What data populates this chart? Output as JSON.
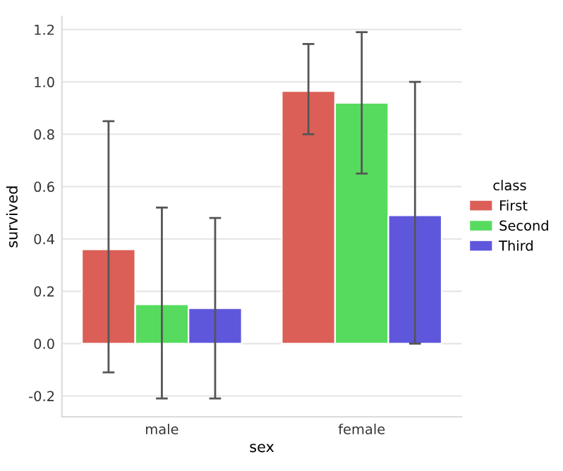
{
  "chart_data": {
    "type": "bar",
    "xlabel": "sex",
    "ylabel": "survived",
    "legend_title": "class",
    "categories": [
      "male",
      "female"
    ],
    "series": [
      {
        "name": "First",
        "color": "#db5f57",
        "values": [
          0.36,
          0.965
        ],
        "errors": [
          [
            -0.11,
            0.85
          ],
          [
            0.8,
            1.145
          ]
        ]
      },
      {
        "name": "Second",
        "color": "#57db5f",
        "values": [
          0.15,
          0.92
        ],
        "errors": [
          [
            -0.21,
            0.52
          ],
          [
            0.65,
            1.19
          ]
        ]
      },
      {
        "name": "Third",
        "color": "#5f57db",
        "values": [
          0.135,
          0.49
        ],
        "errors": [
          [
            -0.21,
            0.48
          ],
          [
            0.0,
            1.0
          ]
        ]
      }
    ],
    "ylim": [
      -0.28,
      1.25
    ],
    "yticks": [
      -0.2,
      {
        "value": 0,
        "label": "0.0"
      },
      0.2,
      0.4,
      0.6,
      0.8,
      {
        "value": 1,
        "label": "1.0"
      },
      1.2
    ],
    "grid": "y",
    "legend": "right"
  }
}
